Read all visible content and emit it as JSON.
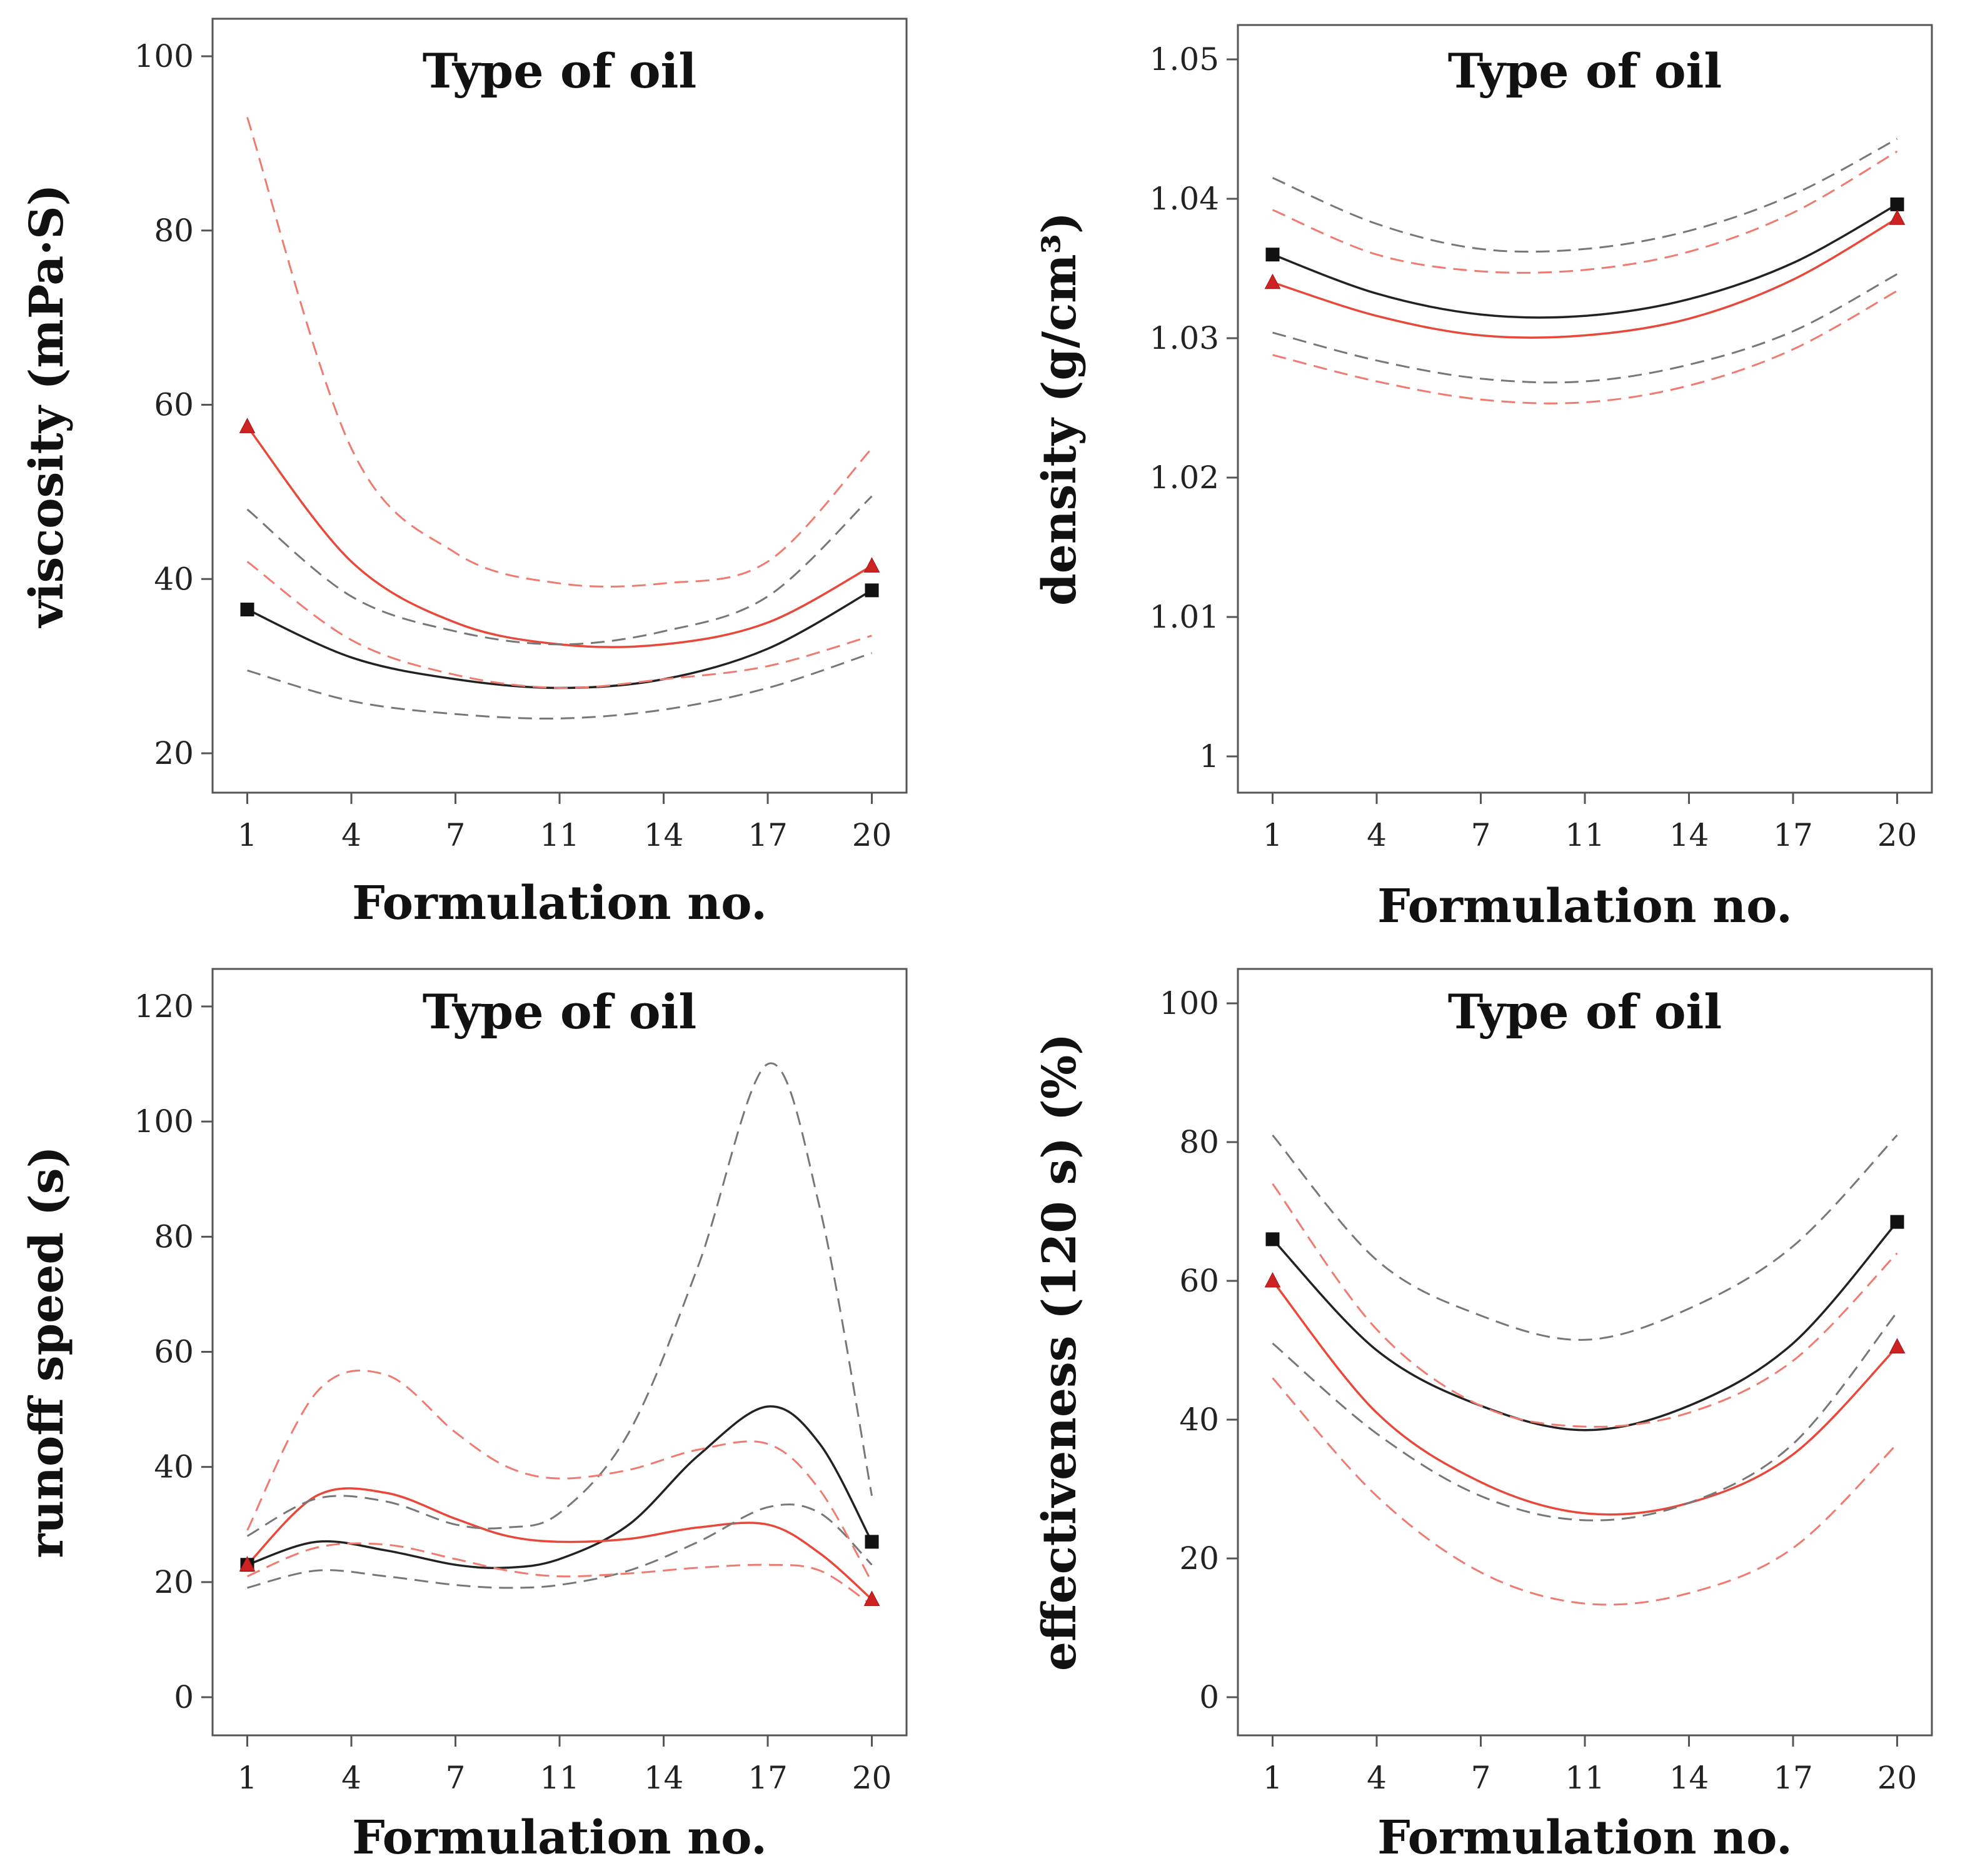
{
  "chart_data": [
    {
      "type": "line",
      "title": "Type of oil",
      "xlabel": "Formulation no.",
      "ylabel": "viscosity (mPa·S)",
      "xticks": [
        "1",
        "4",
        "7",
        "11",
        "14",
        "17",
        "20"
      ],
      "yticks": [
        "20",
        "40",
        "60",
        "80",
        "100"
      ],
      "xlim": [
        1,
        20
      ],
      "ylim": [
        16,
        104
      ],
      "colors": {
        "black": "#222222",
        "red": "#e8483a",
        "black_ci": "#777777",
        "red_ci": "#ef7a70"
      },
      "series": [
        {
          "kind": "fit",
          "color": "black",
          "x": [
            1,
            4,
            7,
            11,
            14,
            17,
            20
          ],
          "y": [
            36.5,
            31,
            28.5,
            27.5,
            28.5,
            32,
            38.7
          ]
        },
        {
          "kind": "fit",
          "color": "red",
          "x": [
            1,
            4,
            7,
            11,
            14,
            17,
            20
          ],
          "y": [
            57.5,
            42,
            35,
            32.5,
            32.5,
            35,
            41.5
          ]
        },
        {
          "kind": "ci",
          "color": "black",
          "x": [
            1,
            4,
            7,
            11,
            14,
            17,
            20
          ],
          "y": [
            29.5,
            26,
            24.5,
            24,
            25,
            27.5,
            31.5
          ]
        },
        {
          "kind": "ci",
          "color": "black",
          "x": [
            1,
            4,
            7,
            11,
            14,
            17,
            20
          ],
          "y": [
            48,
            38,
            34,
            32.5,
            34,
            38,
            49.5
          ]
        },
        {
          "kind": "ci",
          "color": "red",
          "x": [
            1,
            4,
            7,
            11,
            14,
            17,
            20
          ],
          "y": [
            42,
            33,
            29,
            27.5,
            28.5,
            30,
            33.5
          ]
        },
        {
          "kind": "ci",
          "color": "red",
          "x": [
            1,
            4,
            7,
            11,
            14,
            17,
            20
          ],
          "y": [
            93,
            55,
            43,
            39.5,
            39.5,
            42,
            55
          ]
        },
        {
          "kind": "points",
          "color": "black",
          "marker": "square",
          "x": [
            1,
            20
          ],
          "y": [
            36.5,
            38.7
          ]
        },
        {
          "kind": "points",
          "color": "red",
          "marker": "triangle",
          "x": [
            1,
            20
          ],
          "y": [
            57.5,
            41.5
          ]
        }
      ]
    },
    {
      "type": "line",
      "title": "Type of oil",
      "xlabel": "Formulation no.",
      "ylabel": "density (g/cm³)",
      "xticks": [
        "1",
        "4",
        "7",
        "11",
        "14",
        "17",
        "20"
      ],
      "yticks": [
        "1",
        "1.01",
        "1.02",
        "1.03",
        "1.04",
        "1.05"
      ],
      "xlim": [
        1,
        20
      ],
      "ylim": [
        0.997,
        1.0528
      ],
      "colors": {
        "black": "#222222",
        "red": "#e8483a",
        "black_ci": "#777777",
        "red_ci": "#ef7a70"
      },
      "series": [
        {
          "kind": "fit",
          "color": "black",
          "x": [
            1,
            4,
            7,
            11,
            14,
            17,
            20
          ],
          "y": [
            1.036,
            1.0332,
            1.0317,
            1.0316,
            1.0328,
            1.0354,
            1.0396
          ]
        },
        {
          "kind": "fit",
          "color": "red",
          "x": [
            1,
            4,
            7,
            11,
            14,
            17,
            20
          ],
          "y": [
            1.034,
            1.0316,
            1.0302,
            1.0302,
            1.0314,
            1.0342,
            1.0386
          ]
        },
        {
          "kind": "ci",
          "color": "black",
          "x": [
            1,
            4,
            7,
            11,
            14,
            17,
            20
          ],
          "y": [
            1.0304,
            1.0284,
            1.0271,
            1.0269,
            1.0281,
            1.0305,
            1.0346
          ]
        },
        {
          "kind": "ci",
          "color": "black",
          "x": [
            1,
            4,
            7,
            11,
            14,
            17,
            20
          ],
          "y": [
            1.0415,
            1.0382,
            1.0364,
            1.0364,
            1.0377,
            1.0403,
            1.0443
          ]
        },
        {
          "kind": "ci",
          "color": "red",
          "x": [
            1,
            4,
            7,
            11,
            14,
            17,
            20
          ],
          "y": [
            1.0288,
            1.0269,
            1.0256,
            1.0254,
            1.0266,
            1.0292,
            1.0334
          ]
        },
        {
          "kind": "ci",
          "color": "red",
          "x": [
            1,
            4,
            7,
            11,
            14,
            17,
            20
          ],
          "y": [
            1.0392,
            1.036,
            1.0348,
            1.0349,
            1.0362,
            1.039,
            1.0434
          ]
        },
        {
          "kind": "points",
          "color": "black",
          "marker": "square",
          "x": [
            1,
            20
          ],
          "y": [
            1.036,
            1.0396
          ]
        },
        {
          "kind": "points",
          "color": "red",
          "marker": "triangle",
          "x": [
            1,
            20
          ],
          "y": [
            1.034,
            1.0386
          ]
        }
      ]
    },
    {
      "type": "line",
      "title": "Type of oil",
      "xlabel": "Formulation no.",
      "ylabel": "runoff speed (s)",
      "xticks": [
        "1",
        "4",
        "7",
        "11",
        "14",
        "17",
        "20"
      ],
      "yticks": [
        "0",
        "20",
        "40",
        "60",
        "80",
        "100",
        "120"
      ],
      "xlim": [
        1,
        20
      ],
      "ylim": [
        -7,
        127
      ],
      "colors": {
        "black": "#222222",
        "red": "#e8483a",
        "black_ci": "#777777",
        "red_ci": "#ef7a70"
      },
      "series": [
        {
          "kind": "fit",
          "color": "black",
          "x": [
            1,
            3,
            5,
            7,
            9,
            11,
            13,
            15,
            17,
            18.5,
            20
          ],
          "y": [
            23,
            27,
            25.5,
            23,
            22.5,
            24,
            30,
            42,
            50.5,
            44,
            27
          ]
        },
        {
          "kind": "fit",
          "color": "red",
          "x": [
            1,
            3,
            5,
            7,
            9,
            11,
            13,
            15,
            17,
            18.5,
            20
          ],
          "y": [
            23,
            35,
            35.5,
            31,
            28,
            27,
            27.5,
            29.5,
            30,
            25,
            17
          ]
        },
        {
          "kind": "ci",
          "color": "black",
          "x": [
            1,
            3,
            5,
            7,
            9,
            11,
            13,
            15,
            17,
            18.5,
            20
          ],
          "y": [
            19,
            22,
            21,
            19.5,
            19,
            19.5,
            22,
            27,
            33,
            32,
            23
          ]
        },
        {
          "kind": "ci",
          "color": "black",
          "x": [
            1,
            3,
            5,
            7,
            9,
            11,
            13,
            15,
            17,
            18.5,
            20
          ],
          "y": [
            28,
            34.5,
            34,
            30,
            29.5,
            32,
            46,
            75,
            110,
            85,
            35
          ]
        },
        {
          "kind": "ci",
          "color": "red",
          "x": [
            1,
            3,
            5,
            7,
            9,
            11,
            13,
            15,
            17,
            18.5,
            20
          ],
          "y": [
            21,
            26,
            26.5,
            24,
            22,
            21,
            21.5,
            22.5,
            23,
            22,
            16
          ]
        },
        {
          "kind": "ci",
          "color": "red",
          "x": [
            1,
            3,
            5,
            7,
            9,
            11,
            13,
            15,
            17,
            18.5,
            20
          ],
          "y": [
            29,
            53,
            56,
            46,
            40,
            38,
            39.5,
            43,
            44,
            36,
            20
          ]
        },
        {
          "kind": "points",
          "color": "black",
          "marker": "square",
          "x": [
            1,
            20
          ],
          "y": [
            23,
            27
          ]
        },
        {
          "kind": "points",
          "color": "red",
          "marker": "triangle",
          "x": [
            1,
            20
          ],
          "y": [
            23,
            17
          ]
        }
      ]
    },
    {
      "type": "line",
      "title": "Type of oil",
      "xlabel": "Formulation no.",
      "ylabel": "effectiveness (120 s) (%)",
      "xticks": [
        "1",
        "4",
        "7",
        "11",
        "14",
        "17",
        "20"
      ],
      "yticks": [
        "0",
        "20",
        "40",
        "60",
        "80",
        "100"
      ],
      "xlim": [
        1,
        20
      ],
      "ylim": [
        -5.5,
        105.5
      ],
      "colors": {
        "black": "#222222",
        "red": "#e8483a",
        "black_ci": "#777777",
        "red_ci": "#ef7a70"
      },
      "series": [
        {
          "kind": "fit",
          "color": "black",
          "x": [
            1,
            4,
            7,
            11,
            14,
            17,
            20
          ],
          "y": [
            66,
            50,
            42,
            38.5,
            42,
            51,
            68.5
          ]
        },
        {
          "kind": "fit",
          "color": "red",
          "x": [
            1,
            4,
            7,
            11,
            14,
            17,
            20
          ],
          "y": [
            60,
            41,
            31,
            26.5,
            28,
            35,
            50.5
          ]
        },
        {
          "kind": "ci",
          "color": "black",
          "x": [
            1,
            4,
            7,
            11,
            14,
            17,
            20
          ],
          "y": [
            51,
            38,
            29,
            25.5,
            28,
            36.5,
            55.5
          ]
        },
        {
          "kind": "ci",
          "color": "black",
          "x": [
            1,
            4,
            7,
            11,
            14,
            17,
            20
          ],
          "y": [
            81,
            63,
            55,
            51.5,
            56,
            65,
            81
          ]
        },
        {
          "kind": "ci",
          "color": "red",
          "x": [
            1,
            4,
            7,
            11,
            14,
            17,
            20
          ],
          "y": [
            46,
            29,
            18,
            13.5,
            15,
            21.5,
            36.5
          ]
        },
        {
          "kind": "ci",
          "color": "red",
          "x": [
            1,
            4,
            7,
            11,
            14,
            17,
            20
          ],
          "y": [
            74,
            53,
            42,
            39,
            41,
            48.5,
            64
          ]
        },
        {
          "kind": "points",
          "color": "black",
          "marker": "square",
          "x": [
            1,
            20
          ],
          "y": [
            66,
            68.5
          ]
        },
        {
          "kind": "points",
          "color": "red",
          "marker": "triangle",
          "x": [
            1,
            20
          ],
          "y": [
            60,
            50.5
          ]
        }
      ]
    }
  ]
}
